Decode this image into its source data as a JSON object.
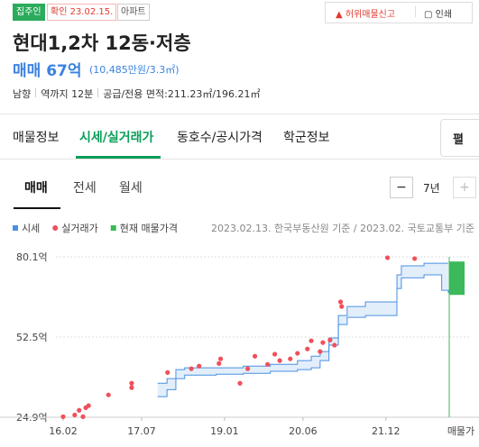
{
  "header": {
    "badges": [
      "집주인",
      "확인 23.02.15.",
      "아파트"
    ],
    "actions": [
      "허위매물신고",
      "인쇄"
    ],
    "title": "현대1,2차 12동·저층",
    "price": "매매 67억",
    "price_per_area": "(10,485만원/3.3㎡)",
    "details": [
      "남향",
      "역까지 12분",
      "공급/전용 면적:211.23㎡/196.21㎡"
    ]
  },
  "tabs": {
    "items": [
      "매물정보",
      "시세/실거래가",
      "동호수/공시가격",
      "학군정보"
    ],
    "active": 1,
    "more": "펼"
  },
  "subtabs": {
    "items": [
      "매매",
      "전세",
      "월세"
    ],
    "active": 0,
    "period": "7년"
  },
  "chart_data": {
    "type": "combo",
    "source": "2023.02.13. 한국부동산원 기준 / 2023.02. 국토교통부 기준",
    "xlim": [
      2015.95,
      2023.05
    ],
    "xticks": [
      {
        "value": 2016.08,
        "label": "16.02"
      },
      {
        "value": 2017.5,
        "label": "17.07"
      },
      {
        "value": 2019.0,
        "label": "19.01"
      },
      {
        "value": 2020.42,
        "label": "20.06"
      },
      {
        "value": 2021.92,
        "label": "21.12"
      }
    ],
    "ylim": [
      24.9,
      80.1
    ],
    "yticks": [
      {
        "value": 24.9,
        "label": "24.9억"
      },
      {
        "value": 52.5,
        "label": "52.5억"
      },
      {
        "value": 80.1,
        "label": "80.1억"
      }
    ],
    "grid": true,
    "series": [
      {
        "name": "시세",
        "type": "band",
        "color": "#4a90e2",
        "x": [
          2017.79,
          2017.96,
          2018.12,
          2018.28,
          2018.85,
          2019.34,
          2019.83,
          2020.32,
          2020.57,
          2020.73,
          2020.89,
          2021.06,
          2021.22,
          2021.55,
          2022.12,
          2022.2,
          2022.61,
          2022.93,
          2023.05
        ],
        "upper": [
          36.6,
          38.2,
          41.3,
          41.9,
          41.9,
          42.5,
          43.1,
          44.4,
          45.9,
          47.5,
          52.2,
          59.9,
          63.0,
          64.6,
          73.9,
          77.0,
          77.9,
          77.9,
          77.9
        ],
        "lower": [
          32.0,
          34.4,
          38.2,
          39.4,
          39.7,
          40.0,
          40.7,
          41.3,
          41.9,
          44.4,
          49.7,
          56.8,
          59.3,
          59.9,
          69.2,
          72.9,
          73.9,
          68.6,
          67.7
        ]
      },
      {
        "name": "실거래가",
        "type": "scatter",
        "color": "#f0505a",
        "x": [
          2016.08,
          2016.29,
          2016.37,
          2016.44,
          2016.49,
          2016.54,
          2016.9,
          2017.32,
          2017.32,
          2017.97,
          2018.4,
          2018.54,
          2018.9,
          2018.93,
          2019.28,
          2019.42,
          2019.55,
          2019.78,
          2019.91,
          2020.0,
          2020.19,
          2020.32,
          2020.5,
          2020.57,
          2020.73,
          2020.78,
          2020.91,
          2020.99,
          2021.1,
          2021.12,
          2021.95,
          2022.44
        ],
        "values": [
          25.1,
          25.7,
          27.3,
          25.1,
          28.2,
          28.9,
          32.6,
          36.6,
          35.1,
          40.3,
          41.6,
          42.5,
          43.4,
          45.0,
          36.6,
          41.6,
          45.9,
          43.1,
          46.6,
          44.4,
          45.0,
          46.9,
          48.4,
          51.2,
          47.5,
          50.6,
          51.5,
          49.7,
          64.6,
          63.0,
          79.8,
          79.5
        ]
      },
      {
        "name": "현재 매물가격",
        "type": "range",
        "color": "#3cb95a",
        "label": "매물가",
        "low": 67,
        "high": 78.5
      }
    ]
  }
}
